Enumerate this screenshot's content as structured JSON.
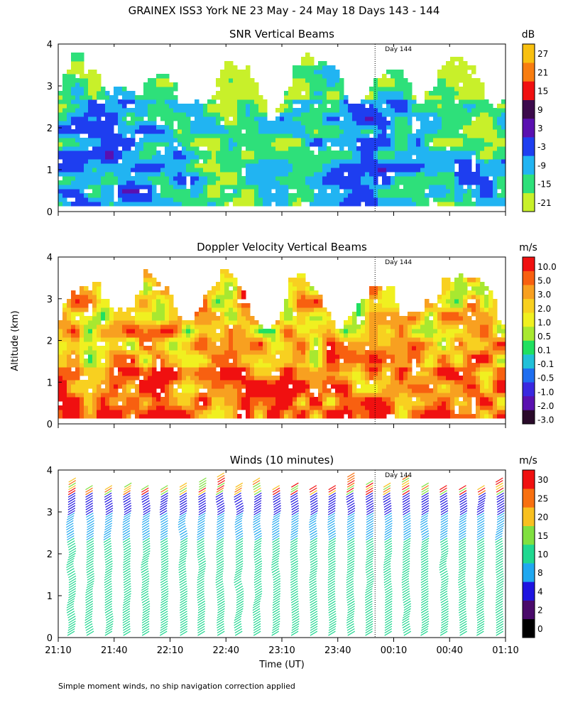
{
  "figure": {
    "title": "GRAINEX ISS3 York NE  23 May - 24 May 18 Days 143 - 144",
    "ylabel": "Altitude (km)",
    "xlabel": "Time (UT)",
    "footnote": "Simple moment winds, no ship navigation correction applied",
    "day_marker": "Day 144"
  },
  "chart_data": [
    {
      "type": "heatmap",
      "title": "SNR Vertical Beams",
      "units": "dB",
      "x_ticks": [
        "21:10",
        "21:40",
        "22:10",
        "22:40",
        "23:10",
        "23:40",
        "00:10",
        "00:40",
        "01:10"
      ],
      "ylim": [
        0,
        4
      ],
      "y_ticks": [
        "0",
        "1",
        "2",
        "3",
        "4"
      ],
      "colorbar": {
        "labels": [
          "-21",
          "-15",
          "-9",
          "-3",
          "3",
          "9",
          "15",
          "21",
          "27"
        ],
        "colors": [
          "#c8f02a",
          "#2ee07a",
          "#21b4f2",
          "#1e3ef0",
          "#5a10b0",
          "#3c0a4c",
          "#f01010",
          "#f87d10",
          "#f8c010"
        ]
      },
      "day_marker_time": "00:00"
    },
    {
      "type": "heatmap",
      "title": "Doppler Velocity Vertical Beams",
      "units": "m/s",
      "x_ticks": [
        "21:10",
        "21:40",
        "22:10",
        "22:40",
        "23:10",
        "23:40",
        "00:10",
        "00:40",
        "01:10"
      ],
      "ylim": [
        0,
        4
      ],
      "y_ticks": [
        "0",
        "1",
        "2",
        "3",
        "4"
      ],
      "colorbar": {
        "labels": [
          "10.0",
          "5.0",
          "3.0",
          "2.0",
          "1.0",
          "0.5",
          "0.1",
          "-0.1",
          "-0.5",
          "-1.0",
          "-2.0",
          "-3.0"
        ],
        "colors": [
          "#2a0a2a",
          "#5a10b0",
          "#3a28e0",
          "#1e6ef0",
          "#21c0d8",
          "#20e060",
          "#a8e830",
          "#f0f020",
          "#f8d020",
          "#f8a020",
          "#f86010",
          "#f01010"
        ]
      },
      "day_marker_time": "00:00"
    },
    {
      "type": "wind_barbs",
      "title": "Winds (10 minutes)",
      "units": "m/s",
      "x_ticks": [
        "21:10",
        "21:40",
        "22:10",
        "22:40",
        "23:10",
        "23:40",
        "00:10",
        "00:40",
        "01:10"
      ],
      "ylim": [
        0,
        4
      ],
      "y_ticks": [
        "0",
        "1",
        "2",
        "3",
        "4"
      ],
      "colorbar": {
        "labels": [
          "0",
          "2",
          "4",
          "8",
          "10",
          "15",
          "20",
          "25",
          "30"
        ],
        "colors": [
          "#000000",
          "#4a0a6a",
          "#1e14e0",
          "#20a8f0",
          "#20d890",
          "#80e040",
          "#f8c020",
          "#f87010",
          "#f01010"
        ]
      },
      "profile_times": [
        "21:15",
        "21:25",
        "21:35",
        "21:45",
        "21:55",
        "22:05",
        "22:15",
        "22:25",
        "22:35",
        "22:45",
        "22:55",
        "23:05",
        "23:15",
        "23:25",
        "23:35",
        "23:45",
        "23:55",
        "00:05",
        "00:15",
        "00:25",
        "00:35",
        "00:45",
        "00:55",
        "01:05"
      ],
      "day_marker_time": "00:00"
    }
  ]
}
